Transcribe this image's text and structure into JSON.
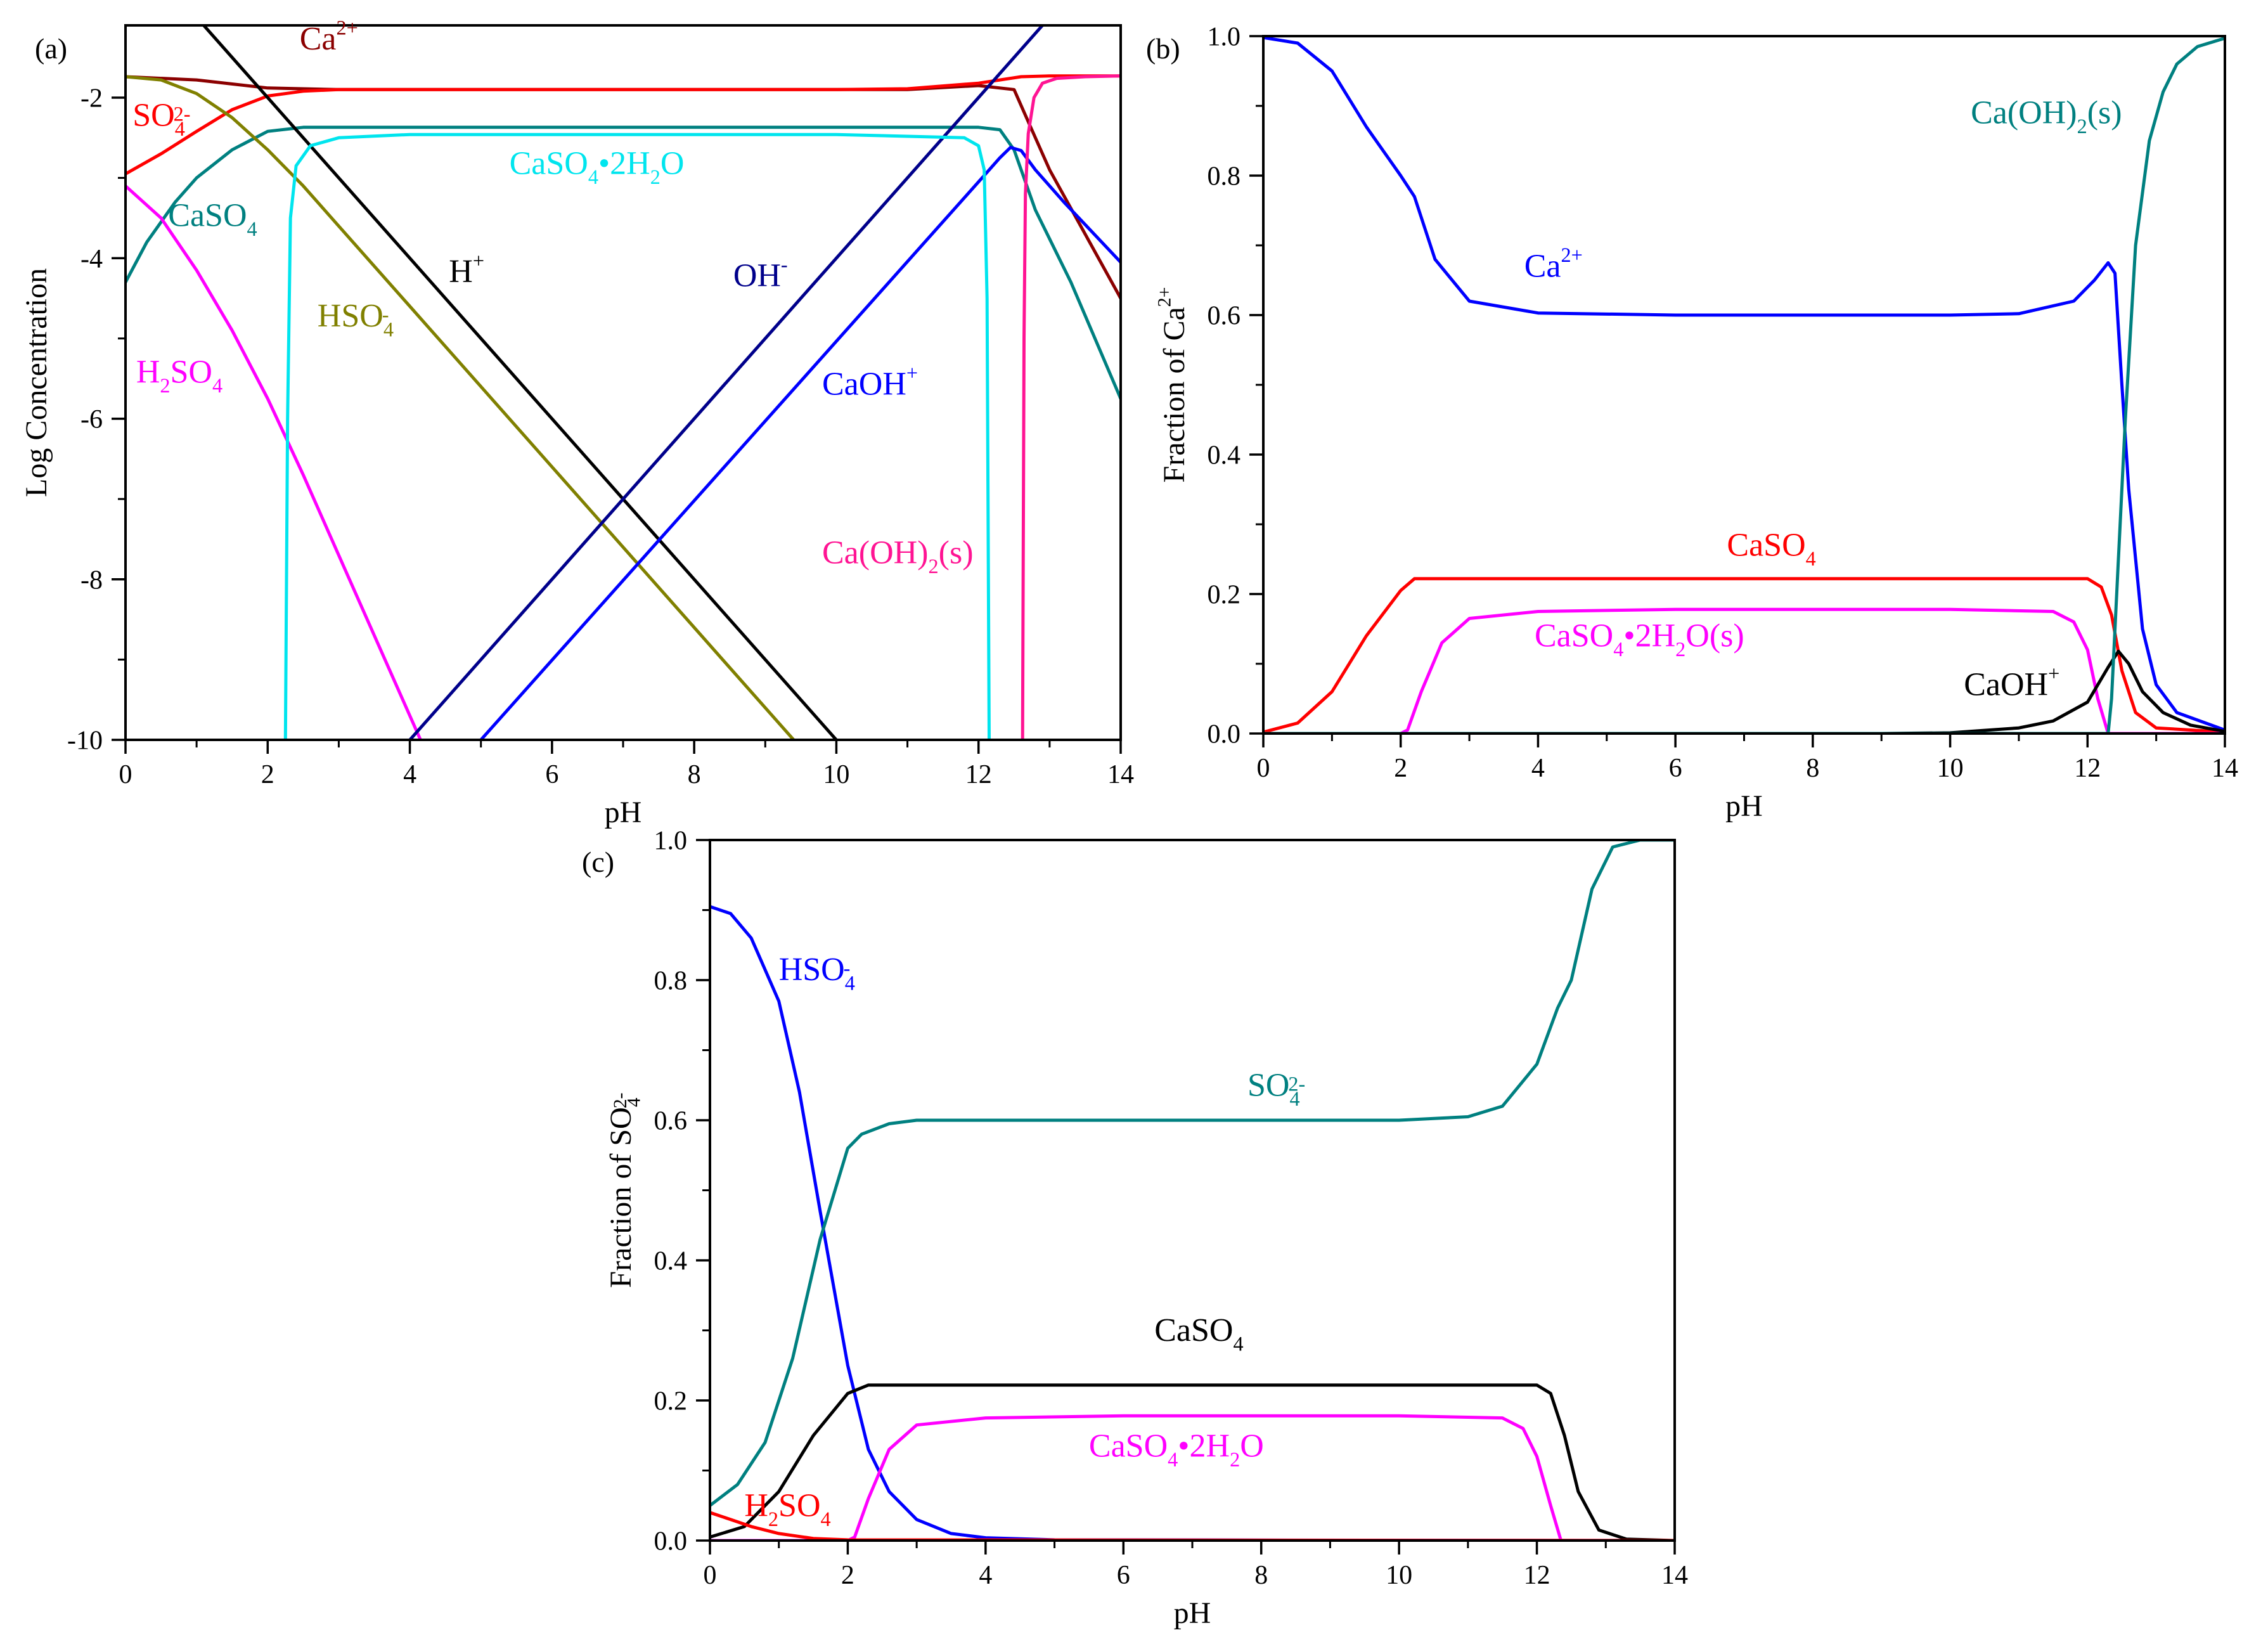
{
  "figure": {
    "panels": [
      {
        "id": "a",
        "panel_label": "(a)",
        "x_axis": {
          "label": "pH",
          "range": [
            0,
            14
          ],
          "ticks": [
            0,
            2,
            4,
            6,
            8,
            10,
            12,
            14
          ]
        },
        "y_axis": {
          "label": "Log Concentration",
          "range": [
            -10,
            -1.1
          ],
          "ticks": [
            -2,
            -4,
            -6,
            -8,
            -10
          ]
        }
      },
      {
        "id": "b",
        "panel_label": "(b)",
        "x_axis": {
          "label": "pH",
          "range": [
            0,
            14
          ],
          "ticks": [
            0,
            2,
            4,
            6,
            8,
            10,
            12,
            14
          ]
        },
        "y_axis": {
          "label": "Fraction of Ca",
          "label_sup": "2+",
          "range": [
            0,
            1.0
          ],
          "ticks": [
            "0.0",
            "0.2",
            "0.4",
            "0.6",
            "0.8",
            "1.0"
          ]
        }
      },
      {
        "id": "c",
        "panel_label": "(c)",
        "x_axis": {
          "label": "pH",
          "range": [
            0,
            14
          ],
          "ticks": [
            0,
            2,
            4,
            6,
            8,
            10,
            12,
            14
          ]
        },
        "y_axis": {
          "label": "Fraction of SO",
          "label_sub": "4",
          "label_sup": "2-",
          "range": [
            0,
            1.0
          ],
          "ticks": [
            "0.0",
            "0.2",
            "0.4",
            "0.6",
            "0.8",
            "1.0"
          ]
        }
      }
    ]
  },
  "chart_data": [
    {
      "panel": "a",
      "type": "line",
      "title": "",
      "xlabel": "pH",
      "ylabel": "Log Concentration",
      "xlim": [
        0,
        14
      ],
      "ylim": [
        -10,
        -1.1
      ],
      "series": [
        {
          "key": "a_ca2",
          "name": "Ca2+",
          "color": "#8B0000",
          "x": [
            0,
            1,
            2,
            3,
            4,
            6,
            8,
            10,
            11,
            12,
            12.5,
            12.7,
            13,
            13.5,
            14
          ],
          "y": [
            -1.74,
            -1.78,
            -1.88,
            -1.9,
            -1.9,
            -1.9,
            -1.9,
            -1.9,
            -1.9,
            -1.85,
            -1.9,
            -2.3,
            -2.9,
            -3.7,
            -4.5
          ]
        },
        {
          "key": "a_so4",
          "name": "SO4 2-",
          "color": "#FF0000",
          "x": [
            0,
            0.5,
            1,
            1.5,
            2,
            2.5,
            3,
            4,
            6,
            8,
            10,
            11,
            12,
            12.3,
            12.6,
            13,
            14
          ],
          "y": [
            -2.95,
            -2.7,
            -2.42,
            -2.15,
            -1.98,
            -1.92,
            -1.9,
            -1.9,
            -1.9,
            -1.9,
            -1.9,
            -1.89,
            -1.82,
            -1.78,
            -1.74,
            -1.73,
            -1.73
          ]
        },
        {
          "key": "a_caso4",
          "name": "CaSO4",
          "color": "#008080",
          "x": [
            0,
            0.3,
            0.7,
            1,
            1.5,
            2,
            2.5,
            3,
            4,
            6,
            8,
            10,
            12,
            12.3,
            12.5,
            12.8,
            13.3,
            14
          ],
          "y": [
            -4.3,
            -3.8,
            -3.3,
            -3.0,
            -2.65,
            -2.42,
            -2.37,
            -2.37,
            -2.37,
            -2.37,
            -2.37,
            -2.37,
            -2.37,
            -2.4,
            -2.65,
            -3.4,
            -4.3,
            -5.75
          ]
        },
        {
          "key": "a_hso4",
          "name": "HSO4-",
          "color": "#808000",
          "x": [
            0,
            0.5,
            1,
            1.5,
            2,
            2.5,
            3,
            4,
            6,
            8,
            9.8
          ],
          "y": [
            -1.74,
            -1.78,
            -1.95,
            -2.25,
            -2.65,
            -3.1,
            -3.6,
            -4.6,
            -6.6,
            -8.6,
            -10.4
          ]
        },
        {
          "key": "a_h",
          "name": "H+",
          "color": "#000000",
          "x": [
            1.1,
            10.1
          ],
          "y": [
            -1.1,
            -10.1
          ]
        },
        {
          "key": "a_h2so4",
          "name": "H2SO4",
          "color": "#FF00FF",
          "x": [
            0,
            0.5,
            1,
            1.5,
            2,
            2.5,
            3,
            3.5,
            4,
            4.25
          ],
          "y": [
            -3.1,
            -3.5,
            -4.15,
            -4.9,
            -5.75,
            -6.7,
            -7.7,
            -8.7,
            -9.7,
            -10.2
          ]
        },
        {
          "key": "a_oh",
          "name": "OH-",
          "color": "#00008B",
          "x": [
            3.9,
            12.9
          ],
          "y": [
            -10.1,
            -1.1
          ]
        },
        {
          "key": "a_caoh",
          "name": "CaOH+",
          "color": "#0000FF",
          "x": [
            5.0,
            12.1,
            12.3,
            12.45,
            12.6,
            12.8,
            13.2,
            14
          ],
          "y": [
            -10,
            -2.95,
            -2.75,
            -2.62,
            -2.66,
            -2.9,
            -3.3,
            -4.05
          ]
        },
        {
          "key": "a_gypsum",
          "name": "CaSO4•2H2O",
          "color": "#00E5EE",
          "x": [
            2.25,
            2.28,
            2.32,
            2.4,
            2.6,
            3,
            4,
            6,
            8,
            10,
            11.8,
            12.0,
            12.08,
            12.12,
            12.15
          ],
          "y": [
            -10,
            -6,
            -3.5,
            -2.85,
            -2.6,
            -2.5,
            -2.46,
            -2.46,
            -2.46,
            -2.46,
            -2.5,
            -2.6,
            -2.9,
            -4.5,
            -10
          ]
        },
        {
          "key": "a_caoh2",
          "name": "Ca(OH)2(s)",
          "color": "#FF1493",
          "x": [
            12.62,
            12.64,
            12.66,
            12.7,
            12.78,
            12.9,
            13.1,
            13.5,
            14
          ],
          "y": [
            -10,
            -5,
            -3.2,
            -2.45,
            -2.0,
            -1.82,
            -1.76,
            -1.74,
            -1.73
          ]
        }
      ],
      "annotations": [
        {
          "text": "Ca",
          "sup": "2+",
          "color": "#8B0000",
          "x": 2.45,
          "y": -1.4
        },
        {
          "text": "SO",
          "sub": "4",
          "sup": "2-",
          "color": "#FF0000",
          "x": 0.1,
          "y": -2.35
        },
        {
          "text": "CaSO",
          "sub": "4",
          "color": "#008080",
          "x": 0.6,
          "y": -3.6
        },
        {
          "text": "CaSO",
          "sub": "4",
          "after": "•2H",
          "sub2": "2",
          "after2": "O",
          "color": "#00E5EE",
          "x": 5.4,
          "y": -2.95
        },
        {
          "text": "H",
          "sup": "+",
          "color": "#000000",
          "x": 4.55,
          "y": -4.3
        },
        {
          "text": "HSO",
          "sub": "4",
          "sup": "-",
          "color": "#808000",
          "x": 2.7,
          "y": -4.85
        },
        {
          "text": "OH",
          "sup": "-",
          "color": "#00008B",
          "x": 8.55,
          "y": -4.35
        },
        {
          "text": "H",
          "sub": "2",
          "after": "SO",
          "sub2": "4",
          "color": "#FF00FF",
          "x": 0.15,
          "y": -5.55
        },
        {
          "text": "CaOH",
          "sup": "+",
          "color": "#0000FF",
          "x": 9.8,
          "y": -5.7
        },
        {
          "text": "Ca(OH)",
          "sub": "2",
          "after": "(s)",
          "color": "#FF1493",
          "x": 9.8,
          "y": -7.8
        }
      ]
    },
    {
      "panel": "b",
      "type": "line",
      "title": "",
      "xlabel": "pH",
      "ylabel": "Fraction of Ca2+",
      "xlim": [
        0,
        14
      ],
      "ylim": [
        0,
        1.0
      ],
      "series": [
        {
          "key": "b_ca2",
          "name": "Ca2+",
          "color": "#0000FF",
          "x": [
            0,
            0.5,
            1,
            1.5,
            2,
            2.2,
            2.5,
            3,
            4,
            6,
            8,
            10,
            11,
            11.8,
            12.1,
            12.3,
            12.4,
            12.5,
            12.6,
            12.8,
            13,
            13.3,
            14
          ],
          "y": [
            0.998,
            0.99,
            0.95,
            0.87,
            0.8,
            0.77,
            0.68,
            0.62,
            0.603,
            0.6,
            0.6,
            0.6,
            0.602,
            0.62,
            0.65,
            0.675,
            0.66,
            0.5,
            0.35,
            0.15,
            0.07,
            0.03,
            0.005
          ]
        },
        {
          "key": "b_caso4",
          "name": "CaSO4",
          "color": "#FF0000",
          "x": [
            0,
            0.5,
            1,
            1.5,
            2,
            2.2,
            3,
            6,
            10,
            12,
            12.2,
            12.35,
            12.5,
            12.7,
            13,
            14
          ],
          "y": [
            0.002,
            0.015,
            0.06,
            0.14,
            0.205,
            0.222,
            0.222,
            0.222,
            0.222,
            0.222,
            0.21,
            0.17,
            0.09,
            0.03,
            0.008,
            0.002
          ]
        },
        {
          "key": "b_gypsum",
          "name": "CaSO4•2H2O(s)",
          "color": "#FF00FF",
          "x": [
            0,
            2.0,
            2.1,
            2.3,
            2.6,
            3,
            4,
            6,
            8,
            10,
            11.5,
            11.8,
            12.0,
            12.15,
            12.3,
            14
          ],
          "y": [
            0,
            0,
            0.005,
            0.06,
            0.13,
            0.165,
            0.175,
            0.178,
            0.178,
            0.178,
            0.175,
            0.16,
            0.12,
            0.05,
            0,
            0
          ]
        },
        {
          "key": "b_caoh",
          "name": "CaOH+",
          "color": "#000000",
          "x": [
            0,
            9,
            10,
            11,
            11.5,
            12,
            12.3,
            12.45,
            12.6,
            12.8,
            13.1,
            13.5,
            14
          ],
          "y": [
            0,
            0,
            0.001,
            0.008,
            0.018,
            0.045,
            0.095,
            0.118,
            0.1,
            0.06,
            0.03,
            0.012,
            0.003
          ]
        },
        {
          "key": "b_caoh2",
          "name": "Ca(OH)2(s)",
          "color": "#008080",
          "x": [
            0,
            12.3,
            12.35,
            12.45,
            12.55,
            12.7,
            12.9,
            13.1,
            13.3,
            13.6,
            14
          ],
          "y": [
            0,
            0,
            0.05,
            0.25,
            0.45,
            0.7,
            0.85,
            0.92,
            0.96,
            0.985,
            0.997
          ]
        }
      ],
      "annotations": [
        {
          "text": "Ca",
          "sup": "2+",
          "color": "#0000FF",
          "x": 3.8,
          "y": 0.655
        },
        {
          "text": "CaSO",
          "sub": "4",
          "color": "#FF0000",
          "x": 6.75,
          "y": 0.255
        },
        {
          "text": "CaSO",
          "sub": "4",
          "after": "•2H",
          "sub2": "2",
          "after2": "O(s)",
          "color": "#FF00FF",
          "x": 3.95,
          "y": 0.125
        },
        {
          "text": "CaOH",
          "sup": "+",
          "color": "#000000",
          "x": 10.2,
          "y": 0.055
        },
        {
          "text": "Ca(OH)",
          "sub": "2",
          "after": "(s)",
          "color": "#008080",
          "x": 10.3,
          "y": 0.875
        }
      ]
    },
    {
      "panel": "c",
      "type": "line",
      "title": "",
      "xlabel": "pH",
      "ylabel": "Fraction of SO4 2-",
      "xlim": [
        0,
        14
      ],
      "ylim": [
        0,
        1.0
      ],
      "series": [
        {
          "key": "c_hso4",
          "name": "HSO4-",
          "color": "#0000FF",
          "x": [
            0,
            0.3,
            0.6,
            1,
            1.3,
            1.6,
            2,
            2.3,
            2.6,
            3,
            3.5,
            4,
            5,
            14
          ],
          "y": [
            0.905,
            0.895,
            0.86,
            0.77,
            0.64,
            0.47,
            0.25,
            0.13,
            0.07,
            0.03,
            0.01,
            0.004,
            0.001,
            0
          ]
        },
        {
          "key": "c_so4",
          "name": "SO4 2-",
          "color": "#008080",
          "x": [
            0,
            0.4,
            0.8,
            1.2,
            1.6,
            2,
            2.2,
            2.6,
            3,
            4,
            6,
            8,
            10,
            11,
            11.5,
            12,
            12.3,
            12.5,
            12.8,
            13.1,
            13.5,
            14
          ],
          "y": [
            0.05,
            0.08,
            0.14,
            0.26,
            0.43,
            0.56,
            0.58,
            0.595,
            0.6,
            0.6,
            0.6,
            0.6,
            0.6,
            0.605,
            0.62,
            0.68,
            0.76,
            0.8,
            0.93,
            0.99,
            1.0,
            1.0
          ]
        },
        {
          "key": "c_caso4",
          "name": "CaSO4",
          "color": "#000000",
          "x": [
            0,
            0.5,
            1,
            1.5,
            2,
            2.3,
            3,
            6,
            10,
            12,
            12.2,
            12.4,
            12.6,
            12.9,
            13.3,
            14
          ],
          "y": [
            0.005,
            0.02,
            0.07,
            0.15,
            0.21,
            0.222,
            0.222,
            0.222,
            0.222,
            0.222,
            0.21,
            0.15,
            0.07,
            0.015,
            0.002,
            0
          ]
        },
        {
          "key": "c_gypsum",
          "name": "CaSO4•2H2O",
          "color": "#FF00FF",
          "x": [
            0,
            2.0,
            2.1,
            2.3,
            2.6,
            3,
            4,
            6,
            8,
            10,
            11.5,
            11.8,
            12.0,
            12.2,
            12.35,
            14
          ],
          "y": [
            0,
            0,
            0.005,
            0.06,
            0.13,
            0.165,
            0.175,
            0.178,
            0.178,
            0.178,
            0.175,
            0.16,
            0.12,
            0.05,
            0,
            0
          ]
        },
        {
          "key": "c_h2so4",
          "name": "H2SO4",
          "color": "#FF0000",
          "x": [
            0,
            0.3,
            0.6,
            1,
            1.5,
            2,
            14
          ],
          "y": [
            0.04,
            0.03,
            0.02,
            0.01,
            0.003,
            0.001,
            0
          ]
        }
      ],
      "annotations": [
        {
          "text": "HSO",
          "sub": "4",
          "sup": "-",
          "color": "#0000FF",
          "x": 1.0,
          "y": 0.8
        },
        {
          "text": "SO",
          "sub": "4",
          "sup": "2-",
          "color": "#008080",
          "x": 7.8,
          "y": 0.635
        },
        {
          "text": "CaSO",
          "sub": "4",
          "color": "#000000",
          "x": 6.45,
          "y": 0.285
        },
        {
          "text": "CaSO",
          "sub": "4",
          "after": "•2H",
          "sub2": "2",
          "after2": "O",
          "color": "#FF00FF",
          "x": 5.5,
          "y": 0.12
        },
        {
          "text": "H",
          "sub": "2",
          "after": "SO",
          "sub2": "4",
          "color": "#FF0000",
          "x": 0.5,
          "y": 0.035
        }
      ]
    }
  ]
}
